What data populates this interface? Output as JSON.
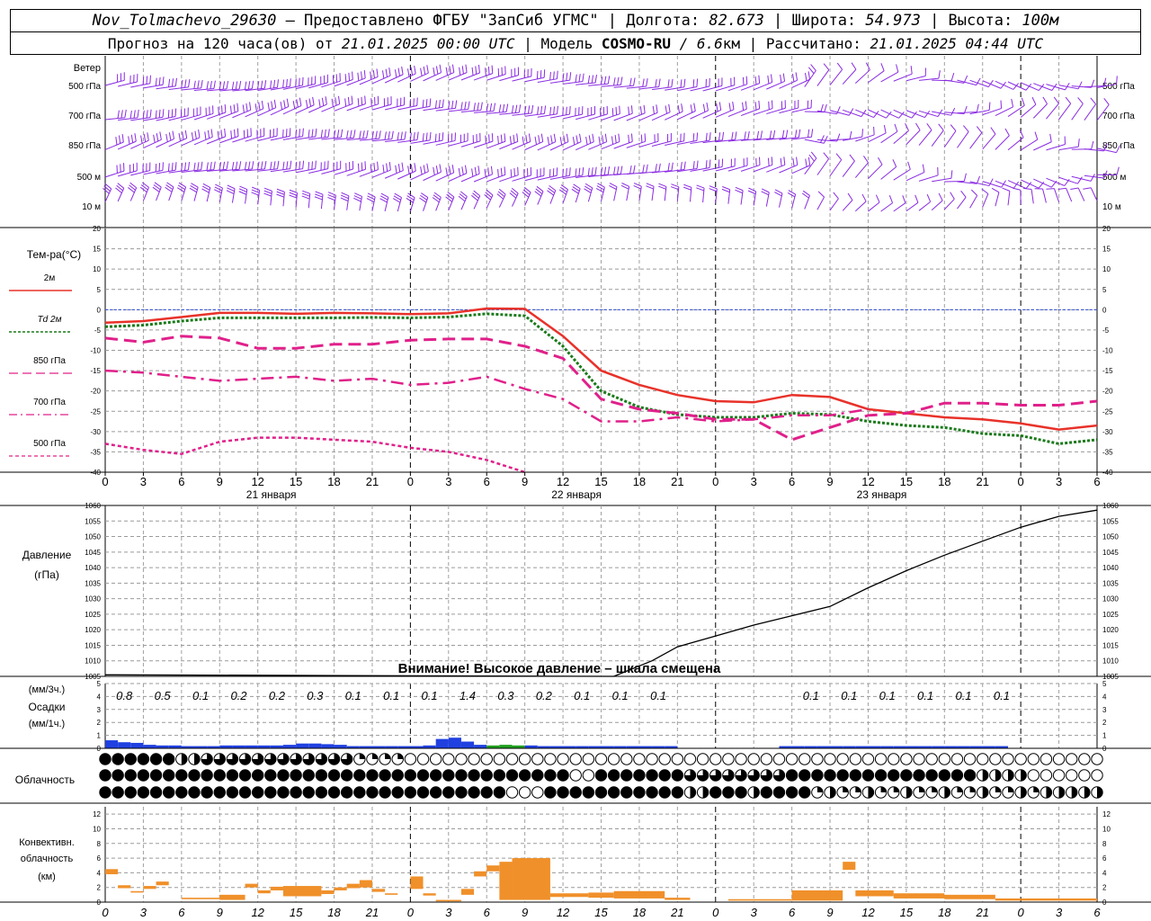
{
  "header": {
    "station": "Nov_Tolmachevo_29630",
    "provider": " – Предоставлено ФГБУ \"ЗапСиб УГМС\" | ",
    "lon_label": "Долгота: ",
    "lon": "82.673",
    "lat_label": " | Широта: ",
    "lat": "54.973",
    "alt_label": " | Высота: ",
    "alt": "100м",
    "forecast_label": "Прогноз на 120 часа(ов) от ",
    "forecast_from": "21.01.2025 00:00 UTC",
    "model_label": " | Модель ",
    "model": "COSMO-RU",
    "resolution": " / 6.6",
    "res_unit": "км",
    "computed_label": " | Рассчитано: ",
    "computed": "21.01.2025 04:44 UTC"
  },
  "time_axis": {
    "hour_labels": [
      "0",
      "3",
      "6",
      "9",
      "12",
      "15",
      "18",
      "21",
      "0",
      "3",
      "6",
      "9",
      "12",
      "15",
      "18",
      "21",
      "0",
      "3",
      "6",
      "9",
      "12",
      "15",
      "18",
      "21",
      "0",
      "3",
      "6"
    ],
    "dates": [
      "21 января",
      "22 января",
      "23 января"
    ]
  },
  "wind": {
    "title": "Ветер",
    "levels": [
      "500 гПа",
      "700 гПа",
      "850 гПа",
      "500 м",
      "10  м"
    ],
    "color": "#8a2be2"
  },
  "temperature": {
    "title": "Тем-ра(°C)",
    "legend": [
      {
        "label": "2м",
        "color": "#e8322a"
      },
      {
        "label": "Td  2м",
        "color": "#1a7a1a"
      },
      {
        "label": "850 гПа",
        "color": "#e0208a"
      },
      {
        "label": "700 гПа",
        "color": "#e0208a"
      },
      {
        "label": "500 гПа",
        "color": "#e0208a"
      }
    ],
    "y_ticks": [
      "20",
      "15",
      "10",
      "5",
      "0",
      "-5",
      "-10",
      "-15",
      "-20",
      "-25",
      "-30",
      "-35",
      "-40"
    ]
  },
  "pressure": {
    "title1": "Давление",
    "title2": "(гПа)",
    "warning": "Внимание! Высокое давление – шкала смещена",
    "y_ticks": [
      "1060",
      "1055",
      "1050",
      "1045",
      "1040",
      "1035",
      "1030",
      "1025",
      "1020",
      "1015",
      "1010",
      "1005"
    ]
  },
  "precip": {
    "label_top": "(мм/3ч.)",
    "label_mid": "Осадки",
    "label_bot": "(мм/1ч.)",
    "y_ticks": [
      "5",
      "4",
      "3",
      "2",
      "1",
      "0"
    ],
    "amounts_3h": [
      {
        "text": "0.8",
        "hour": 1.5
      },
      {
        "text": "0.5",
        "hour": 4.5
      },
      {
        "text": "0.1",
        "hour": 7.5
      },
      {
        "text": "0.2",
        "hour": 10.5
      },
      {
        "text": "0.2",
        "hour": 13.5
      },
      {
        "text": "0.3",
        "hour": 16.5
      },
      {
        "text": "0.1",
        "hour": 19.5
      },
      {
        "text": "0.1",
        "hour": 22.5
      },
      {
        "text": "0.1",
        "hour": 25.5
      },
      {
        "text": "1.4",
        "hour": 28.5
      },
      {
        "text": "0.3",
        "hour": 31.5
      },
      {
        "text": "0.2",
        "hour": 34.5
      },
      {
        "text": "0.1",
        "hour": 37.5
      },
      {
        "text": "0.1",
        "hour": 40.5
      },
      {
        "text": "0.1",
        "hour": 43.5
      },
      {
        "text": "0.1",
        "hour": 55.5
      },
      {
        "text": "0.1",
        "hour": 58.5
      },
      {
        "text": "0.1",
        "hour": 61.5
      },
      {
        "text": "0.1",
        "hour": 64.5
      },
      {
        "text": "0.1",
        "hour": 67.5
      },
      {
        "text": "0.1",
        "hour": 70.5
      }
    ]
  },
  "cloud": {
    "title": "Облачность"
  },
  "convective": {
    "title1": "Конвективн.",
    "title2": "облачность",
    "title3": "(км)",
    "y_ticks": [
      "12",
      "10",
      "8",
      "6",
      "4",
      "2",
      "0"
    ],
    "color": "#f0902a"
  },
  "chart_data": {
    "type": "meteogram",
    "x_unit": "hours from 21.01.2025 00:00 UTC",
    "x_range": [
      0,
      78
    ],
    "series": [
      {
        "name": "2м",
        "unit": "°C",
        "x": [
          0,
          3,
          6,
          9,
          12,
          15,
          18,
          21,
          24,
          27,
          30,
          33,
          36,
          39,
          42,
          45,
          48,
          51,
          54,
          57,
          60,
          63,
          66,
          69,
          72,
          75,
          78
        ],
        "values": [
          -3.2,
          -2.8,
          -1.8,
          -0.8,
          -0.8,
          -1,
          -0.8,
          -0.9,
          -1.1,
          -0.9,
          0.3,
          0.2,
          -6.5,
          -15,
          -18.5,
          -21,
          -22.5,
          -22.8,
          -21,
          -21.5,
          -24.5,
          -25.5,
          -26.5,
          -27,
          -28,
          -29.5,
          -28.5
        ]
      },
      {
        "name": "Td  2м",
        "unit": "°C",
        "x": [
          0,
          3,
          6,
          9,
          12,
          15,
          18,
          21,
          24,
          27,
          30,
          33,
          36,
          39,
          42,
          45,
          48,
          51,
          54,
          57,
          60,
          63,
          66,
          69,
          72,
          75,
          78
        ],
        "values": [
          -4.2,
          -3.8,
          -2.8,
          -2,
          -2,
          -2,
          -2,
          -1.9,
          -2,
          -1.8,
          -1,
          -1.5,
          -9,
          -20,
          -24,
          -25.8,
          -26.5,
          -26.5,
          -25.5,
          -25.8,
          -27.5,
          -28.5,
          -29,
          -30.5,
          -31,
          -33,
          -32
        ]
      },
      {
        "name": "850 гПа",
        "unit": "°C",
        "x": [
          0,
          3,
          6,
          9,
          12,
          15,
          18,
          21,
          24,
          27,
          30,
          33,
          36,
          39,
          42,
          45,
          48,
          51,
          54,
          57,
          60,
          63,
          66,
          69,
          72,
          75,
          78
        ],
        "values": [
          -7,
          -8,
          -6.5,
          -7,
          -9.5,
          -9.5,
          -8.5,
          -8.5,
          -7.5,
          -7.2,
          -7.2,
          -9,
          -12,
          -22,
          -24.5,
          -25.5,
          -27,
          -27,
          -32,
          -29,
          -26,
          -25.5,
          -23,
          -23,
          -23.5,
          -23.5,
          -22.5
        ]
      },
      {
        "name": "700 гПа",
        "unit": "°C",
        "x": [
          0,
          3,
          6,
          9,
          12,
          15,
          18,
          21,
          24,
          27,
          30,
          33,
          36,
          39,
          42,
          45,
          48,
          51,
          54,
          57,
          60,
          63,
          66,
          69,
          72,
          75,
          78
        ],
        "values": [
          -15,
          -15.5,
          -16.5,
          -17.5,
          -17,
          -16.5,
          -17.5,
          -17,
          -18.5,
          -18,
          -16.5,
          -19.5,
          -22,
          -27.5,
          -27.5,
          -26.5,
          -27.5,
          -27,
          -26,
          -26,
          -24.5,
          null,
          null,
          null,
          null,
          null,
          null
        ]
      },
      {
        "name": "500 гПа",
        "unit": "°C",
        "x": [
          0,
          3,
          6,
          9,
          12,
          15,
          18,
          21,
          24,
          27,
          30,
          33
        ],
        "values": [
          -33,
          -34.5,
          -35.5,
          -32.5,
          -31.5,
          -31.5,
          -32,
          -32.5,
          -34,
          -35,
          -37,
          -40
        ]
      },
      {
        "name": "Давление",
        "unit": "гПа",
        "x": [
          0,
          40,
          43,
          45,
          48,
          51,
          54,
          57,
          60,
          63,
          66,
          69,
          72,
          75,
          78
        ],
        "values": [
          1005.5,
          1005,
          1010,
          1014.5,
          1018,
          1021.5,
          1024.5,
          1027.5,
          1033.5,
          1039,
          1044,
          1048.5,
          1053,
          1056.5,
          1058.5
        ]
      }
    ],
    "precip_bars_mm": {
      "hours": [
        1,
        2,
        3,
        4,
        5,
        6,
        7,
        8,
        9,
        10,
        11,
        12,
        13,
        14,
        15,
        16,
        17,
        18,
        19,
        20,
        21,
        22,
        23,
        24,
        25,
        26,
        27,
        28,
        29,
        30,
        31,
        32,
        33,
        34,
        35,
        36,
        37,
        38,
        39,
        40,
        41,
        42,
        43,
        44,
        45,
        46,
        47,
        48,
        49,
        50,
        51,
        52,
        53,
        54,
        55,
        56,
        57,
        58,
        59,
        60,
        61,
        62,
        63,
        64,
        65,
        66,
        67,
        68,
        69,
        70,
        71,
        72
      ],
      "values": [
        0.5,
        0.35,
        0.3,
        0.15,
        0.1,
        0.1,
        0.05,
        0.05,
        0.05,
        0.1,
        0.1,
        0.1,
        0.1,
        0.1,
        0.15,
        0.25,
        0.25,
        0.2,
        0.15,
        0.05,
        0.05,
        0.05,
        0.05,
        0.05,
        0.05,
        0.1,
        0.6,
        0.7,
        0.4,
        0.15,
        0.1,
        0.15,
        0.1,
        0.1,
        0.05,
        0.05,
        0.05,
        0.05,
        0.05,
        0.05,
        0.05,
        0.05,
        0.05,
        0.05,
        0.05,
        0,
        0,
        0,
        0,
        0,
        0,
        0,
        0,
        0.05,
        0.05,
        0.05,
        0.05,
        0.05,
        0.05,
        0.05,
        0.05,
        0.05,
        0.05,
        0.05,
        0.05,
        0.05,
        0.05,
        0.05,
        0.05,
        0.05,
        0.05,
        0
      ],
      "colors_note": "blue = snow/rain, green = mixed (hours 31-33)"
    },
    "cloud_rows_note": "three rows (high, middle, low) of cloud-cover circles, one per hour; mostly overcast, clearing toward the end",
    "convective_km": {
      "segments": [
        {
          "from": 0,
          "to": 1,
          "top": 4.5,
          "base": 3.8
        },
        {
          "from": 1,
          "to": 2,
          "top": 2.3,
          "base": 1.9
        },
        {
          "from": 2,
          "to": 3,
          "top": 1.5,
          "base": 1.3
        },
        {
          "from": 3,
          "to": 4,
          "top": 2.2,
          "base": 1.8
        },
        {
          "from": 4,
          "to": 5,
          "top": 2.8,
          "base": 2.3
        },
        {
          "from": 6,
          "to": 9,
          "top": 0.6,
          "base": 0.4
        },
        {
          "from": 9,
          "to": 11,
          "top": 1,
          "base": 0.3
        },
        {
          "from": 11,
          "to": 12,
          "top": 2.5,
          "base": 2
        },
        {
          "from": 12,
          "to": 13,
          "top": 1.6,
          "base": 1.2
        },
        {
          "from": 13,
          "to": 14,
          "top": 2.1,
          "base": 1.6
        },
        {
          "from": 14,
          "to": 17,
          "top": 2.2,
          "base": 0.8
        },
        {
          "from": 17,
          "to": 18,
          "top": 1.6,
          "base": 1.1
        },
        {
          "from": 18,
          "to": 19,
          "top": 2,
          "base": 1.6
        },
        {
          "from": 19,
          "to": 20,
          "top": 2.5,
          "base": 1.9
        },
        {
          "from": 20,
          "to": 21,
          "top": 3,
          "base": 2
        },
        {
          "from": 21,
          "to": 22,
          "top": 1.8,
          "base": 1.4
        },
        {
          "from": 22,
          "to": 23,
          "top": 1.2,
          "base": 1
        },
        {
          "from": 24,
          "to": 25,
          "top": 3.5,
          "base": 1.8
        },
        {
          "from": 25,
          "to": 26,
          "top": 1.2,
          "base": 0.9
        },
        {
          "from": 26,
          "to": 28,
          "top": 0.3,
          "base": 0.1
        },
        {
          "from": 28,
          "to": 29,
          "top": 1.8,
          "base": 1
        },
        {
          "from": 29,
          "to": 30,
          "top": 4.2,
          "base": 3.5
        },
        {
          "from": 30,
          "to": 31,
          "top": 5,
          "base": 4.2
        },
        {
          "from": 31,
          "to": 32,
          "top": 5.5,
          "base": 0.3
        },
        {
          "from": 32,
          "to": 35,
          "top": 6,
          "base": 0.3
        },
        {
          "from": 35,
          "to": 38,
          "top": 1.2,
          "base": 0.7
        },
        {
          "from": 38,
          "to": 40,
          "top": 1.3,
          "base": 0.6
        },
        {
          "from": 40,
          "to": 44,
          "top": 1.5,
          "base": 0.5
        },
        {
          "from": 44,
          "to": 46,
          "top": 0.6,
          "base": 0.3
        },
        {
          "from": 49,
          "to": 54,
          "top": 0.4,
          "base": 0.2
        },
        {
          "from": 54,
          "to": 58,
          "top": 1.6,
          "base": 0.2
        },
        {
          "from": 58,
          "to": 59,
          "top": 5.5,
          "base": 4.4
        },
        {
          "from": 59,
          "to": 62,
          "top": 1.6,
          "base": 0.8
        },
        {
          "from": 62,
          "to": 66,
          "top": 1.2,
          "base": 0.5
        },
        {
          "from": 66,
          "to": 70,
          "top": 1,
          "base": 0.4
        },
        {
          "from": 70,
          "to": 72,
          "top": 0.5,
          "base": 0.2
        },
        {
          "from": 72,
          "to": 78,
          "top": 0.5,
          "base": 0.2
        }
      ]
    }
  }
}
